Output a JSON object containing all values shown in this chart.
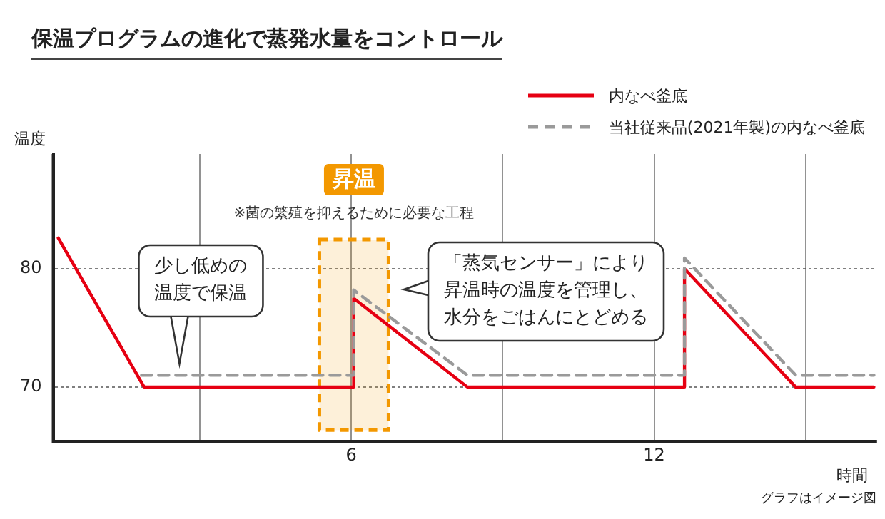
{
  "chart_data": {
    "type": "line",
    "title": "保温プログラムの進化で蒸発水量をコントロール",
    "xlabel": "時間",
    "ylabel": "温度",
    "xlim": [
      0.1,
      16.4
    ],
    "xticks": [
      {
        "value": 3,
        "label": null
      },
      6,
      {
        "value": 9,
        "label": null
      },
      12,
      {
        "value": 15,
        "label": null
      }
    ],
    "ylim": [
      65.4,
      89.7
    ],
    "yticks": [
      70,
      80
    ],
    "grid": true,
    "legend": "top right",
    "marker": "none",
    "series": [
      {
        "name": "内なべ釜底",
        "color": "#e60012",
        "line_style": "solid",
        "x": [
          0.2,
          1.9,
          6.05,
          6.05,
          8.3,
          12.6,
          12.6,
          14.8,
          16.35
        ],
        "values": [
          82.6,
          70,
          70,
          77.5,
          70,
          70,
          80,
          70,
          70
        ]
      },
      {
        "name": "当社従来品(2021年製)の内なべ釜底",
        "color": "#9a9a9a",
        "line_style": "dashed",
        "x": [
          1.85,
          6.05,
          6.05,
          8.3,
          12.6,
          12.6,
          14.8,
          16.35
        ],
        "values": [
          71,
          71,
          78.2,
          71,
          71,
          80.9,
          71,
          71
        ]
      }
    ],
    "bands": [
      {
        "axis": "x",
        "from": 5.37,
        "to": 6.74,
        "label": "昇温",
        "color": "#f39800"
      }
    ],
    "annotations": [
      "※菌の繁殖を抑えるために必要な工程",
      {
        "text": "少し低めの温度で保温",
        "x": 2.6,
        "y": 71.5
      },
      "「蒸気センサー」により昇温時の温度を管理し、水分をごはんにとどめる",
      "グラフはイメージ図"
    ]
  }
}
